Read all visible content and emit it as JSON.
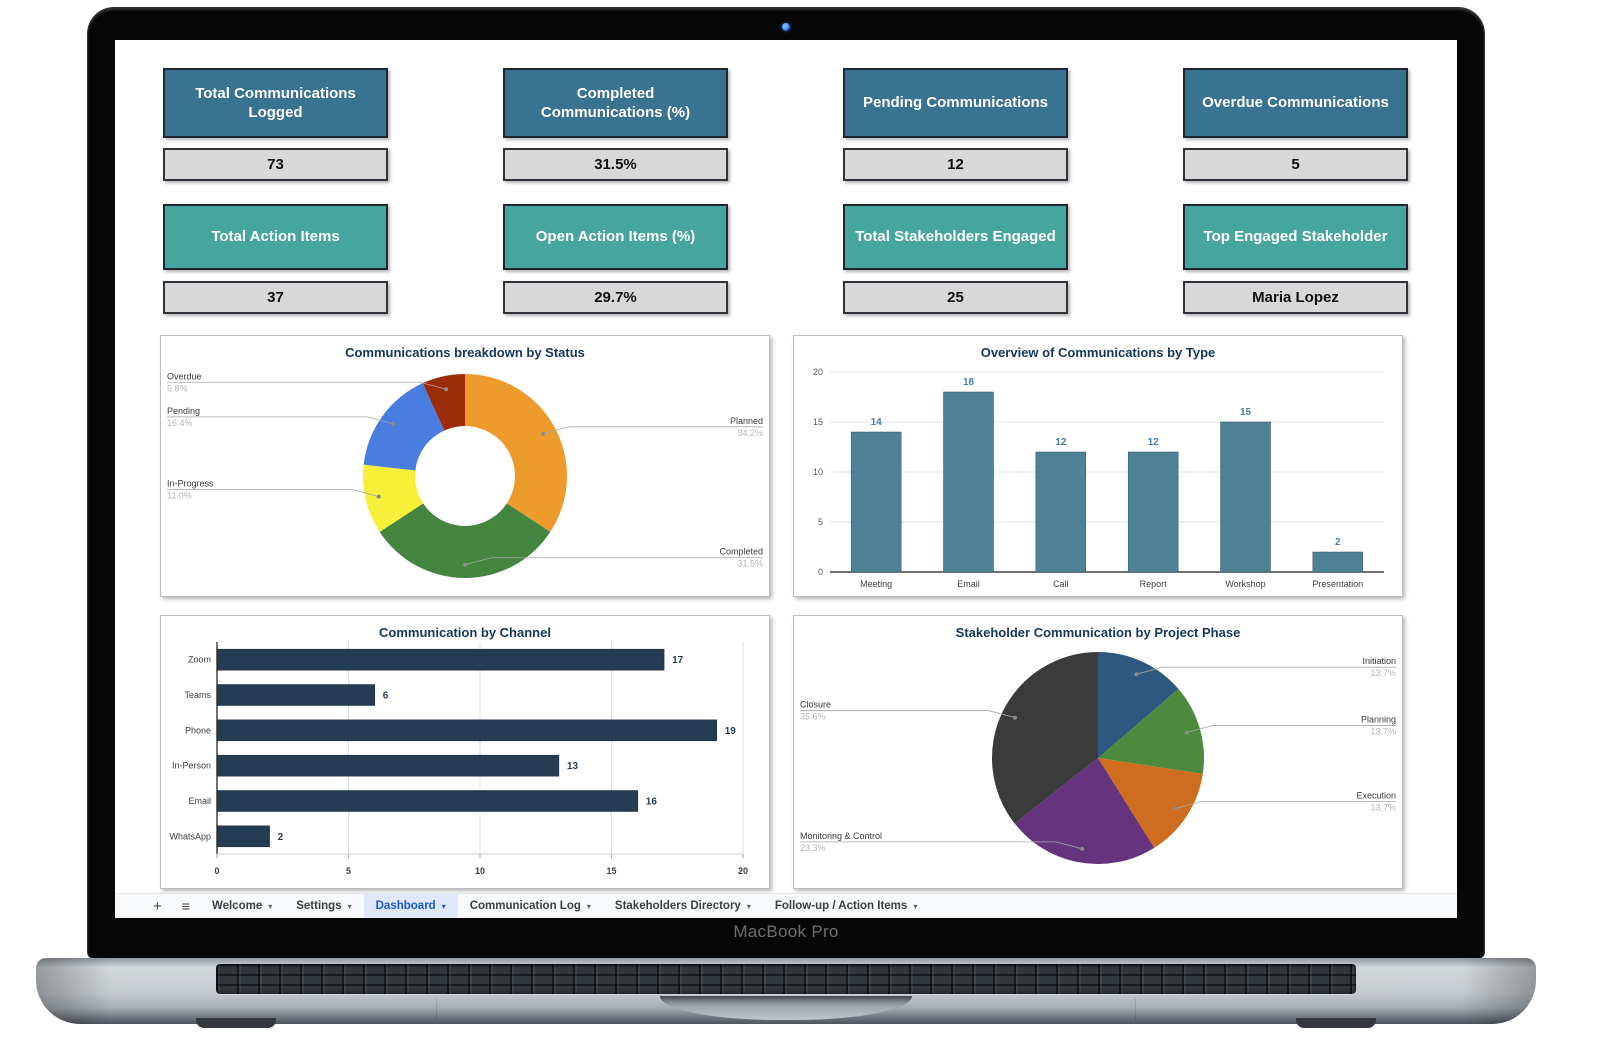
{
  "device": {
    "label": "MacBook Pro"
  },
  "colors": {
    "kpi_blue": "#3A7292",
    "kpi_teal": "#46A69D",
    "kpi_value_bg": "#D8D8D8",
    "chart_title": "#14365C",
    "active_tab_blue": "#1558D6",
    "vbar_fill": "#4E8096",
    "hbar_fill": "#263C55"
  },
  "kpis": {
    "row1": [
      {
        "title": "Total Communications Logged",
        "value": "73"
      },
      {
        "title": "Completed Communications (%)",
        "value": "31.5%"
      },
      {
        "title": "Pending Communications",
        "value": "12"
      },
      {
        "title": "Overdue Communications",
        "value": "5"
      }
    ],
    "row2": [
      {
        "title": "Total Action Items",
        "value": "37"
      },
      {
        "title": "Open Action Items (%)",
        "value": "29.7%"
      },
      {
        "title": "Total Stakeholders Engaged",
        "value": "25"
      },
      {
        "title": "Top Engaged Stakeholder",
        "value": "Maria Lopez"
      }
    ]
  },
  "chart_data": [
    {
      "type": "pie",
      "render": "donut",
      "title": "Communications breakdown by Status",
      "labels": [
        "Planned",
        "Completed",
        "In-Progress",
        "Pending",
        "Overdue"
      ],
      "values": [
        34.2,
        31.5,
        11.0,
        16.4,
        6.8
      ],
      "unit": "%",
      "colors": [
        "#EE9B2E",
        "#44863F",
        "#F7EF38",
        "#4A7DE0",
        "#9C2B07"
      ],
      "inner_ratio": 0.49,
      "legend_position": "labeled-callouts"
    },
    {
      "type": "bar",
      "render": "vbar",
      "title": "Overview of Communications by Type",
      "categories": [
        "Meeting",
        "Email",
        "Call",
        "Report",
        "Workshop",
        "Presentation"
      ],
      "values": [
        14,
        18,
        12,
        12,
        15,
        2
      ],
      "xlabel": "",
      "ylabel": "",
      "ylim": [
        0,
        20
      ],
      "yticks": [
        0,
        5,
        10,
        15,
        20
      ],
      "grid": true,
      "bar_color": "#4E8096",
      "value_label_color": "#4A7CA8"
    },
    {
      "type": "bar",
      "render": "hbar",
      "title": "Communication by Channel",
      "categories": [
        "Zoom",
        "Teams",
        "Phone",
        "In-Person",
        "Email",
        "WhatsApp"
      ],
      "values": [
        17,
        6,
        19,
        13,
        16,
        2
      ],
      "xlabel": "",
      "ylabel": "",
      "xlim": [
        0,
        20
      ],
      "xticks": [
        0,
        5,
        10,
        15,
        20
      ],
      "grid": true,
      "bar_color": "#263C55",
      "value_label_color": "#1F3A5F"
    },
    {
      "type": "pie",
      "render": "pie",
      "title": "Stakeholder Communication by Project Phase",
      "labels": [
        "Initiation",
        "Planning",
        "Execution",
        "Monitoring & Control",
        "Closure"
      ],
      "values": [
        13.7,
        13.7,
        13.7,
        23.3,
        35.6
      ],
      "unit": "%",
      "colors": [
        "#2F5881",
        "#4D8A3D",
        "#CE6C1F",
        "#66337F",
        "#3B3B3B"
      ],
      "legend_position": "labeled-callouts"
    }
  ],
  "tabbar": {
    "add_icon": "+",
    "menu_icon": "≡",
    "caret_icon": "▾",
    "active_tab": "Dashboard",
    "tabs": [
      {
        "label": "Welcome"
      },
      {
        "label": "Settings"
      },
      {
        "label": "Dashboard"
      },
      {
        "label": "Communication Log"
      },
      {
        "label": "Stakeholders Directory"
      },
      {
        "label": "Follow-up / Action Items"
      }
    ]
  }
}
